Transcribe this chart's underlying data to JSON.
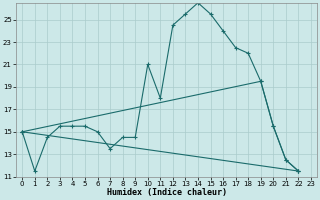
{
  "xlabel": "Humidex (Indice chaleur)",
  "bg_color": "#cce8e8",
  "grid_color": "#aacccc",
  "line_color": "#1a6b6b",
  "xlim": [
    -0.5,
    23.5
  ],
  "ylim": [
    11,
    26.5
  ],
  "yticks": [
    11,
    13,
    15,
    17,
    19,
    21,
    23,
    25
  ],
  "xticks": [
    0,
    1,
    2,
    3,
    4,
    5,
    6,
    7,
    8,
    9,
    10,
    11,
    12,
    13,
    14,
    15,
    16,
    17,
    18,
    19,
    20,
    21,
    22,
    23
  ],
  "line1_x": [
    0,
    1,
    2,
    3,
    4,
    5,
    6,
    7,
    8,
    9,
    10,
    11,
    12,
    13,
    14,
    15,
    16,
    17,
    18,
    19,
    20,
    21,
    22
  ],
  "line1_y": [
    15,
    11.5,
    14.5,
    15.5,
    15.5,
    15.5,
    15.0,
    13.5,
    14.5,
    14.5,
    21.0,
    18.0,
    24.5,
    25.5,
    26.5,
    25.5,
    24.0,
    22.5,
    22.0,
    19.5,
    15.5,
    12.5,
    11.5
  ],
  "line2_x": [
    0,
    19,
    20,
    21,
    22
  ],
  "line2_y": [
    15,
    19.5,
    15.5,
    12.5,
    11.5
  ],
  "line3_x": [
    0,
    22
  ],
  "line3_y": [
    15,
    11.5
  ]
}
